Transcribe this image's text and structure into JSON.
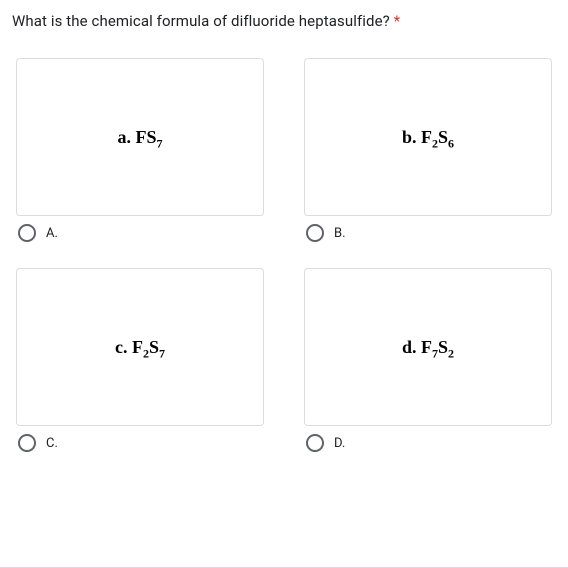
{
  "question": {
    "text": "What is the chemical formula of difluoride heptasulfide? ",
    "required_marker": "*"
  },
  "options": [
    {
      "prefix": "a. ",
      "formula_html": "FS<sub>7</sub>",
      "letter": "A."
    },
    {
      "prefix": "b. ",
      "formula_html": "F<sub>2</sub>S<sub>6</sub>",
      "letter": "B."
    },
    {
      "prefix": "c. ",
      "formula_html": "F<sub>2</sub>S<sub>7</sub>",
      "letter": "C."
    },
    {
      "prefix": "d. ",
      "formula_html": "F<sub>7</sub>S<sub>2</sub>",
      "letter": "D."
    }
  ],
  "style": {
    "card_border": "#dadce0",
    "radio_border": "#5f6368",
    "asterisk_color": "#d93025",
    "divider_color": "#e8d7e2"
  }
}
